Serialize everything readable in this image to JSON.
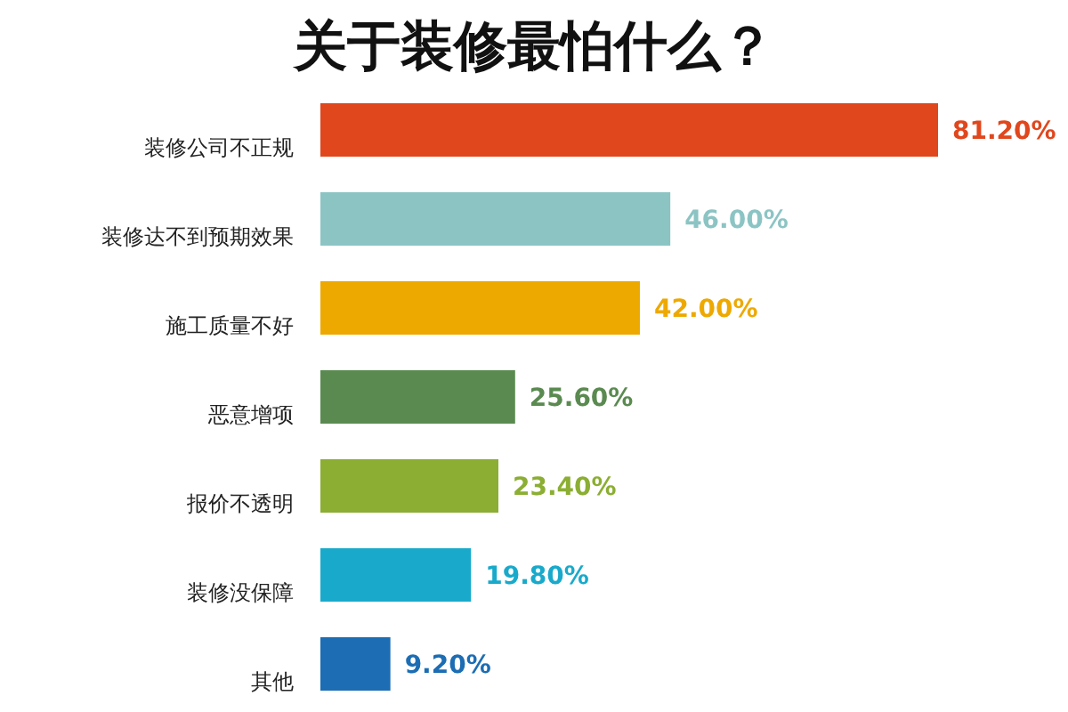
{
  "chart_data": {
    "type": "bar",
    "orientation": "horizontal",
    "title": "关于装修最怕什么？",
    "categories": [
      "装修公司不正规",
      "装修达不到预期效果",
      "施工质量不好",
      "恶意增项",
      "报价不透明",
      "装修没保障",
      "其他"
    ],
    "values": [
      81.2,
      46.0,
      42.0,
      25.6,
      23.4,
      19.8,
      9.2
    ],
    "value_labels": [
      "81.20%",
      "46.00%",
      "42.00%",
      "25.60%",
      "23.40%",
      "19.80%",
      "9.20%"
    ],
    "colors": [
      "#e0471d",
      "#8cc4c4",
      "#eea900",
      "#5a8a50",
      "#8bae33",
      "#19aacb",
      "#1c6db3"
    ]
  }
}
